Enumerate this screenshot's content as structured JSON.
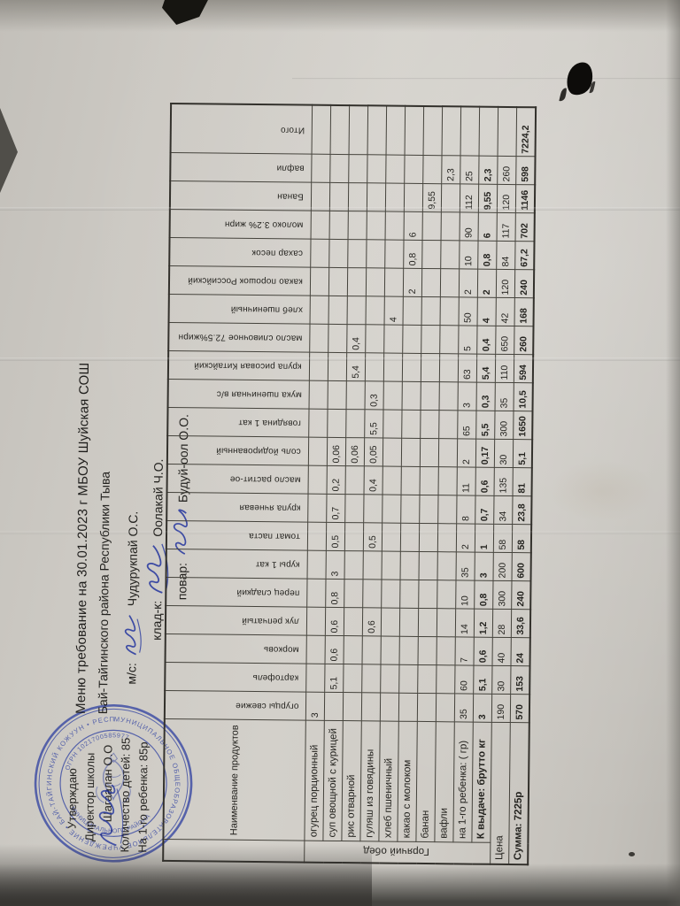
{
  "page": {
    "title_line1": "Меню требование на 30.01.2023 г МБОУ Шуйская СОШ",
    "title_line2": "Бай-Тайгинского района Республики Тыва",
    "staff": [
      {
        "role": "м/с:",
        "name": "Чудурукпай О.С."
      },
      {
        "role": "клад-к:",
        "name": "Оолакай Ч.О."
      },
      {
        "role": "повар:",
        "name": "Будуй-оол О.О."
      }
    ],
    "approval": [
      "Утверждаю",
      "Директор школы",
      "Шагаалан О.О",
      "Количество детей: 85",
      "На 1-го ребенка: 85р"
    ],
    "stamp": {
      "ring_text": "МУНИЦИПАЛЬНОЕ ОБЩЕОБРАЗОВАТЕЛЬНОЕ УЧРЕЖДЕНИЕ • БАЙ-ТАЙГИНСКИЙ КОЖУУН • РЕСПУБЛИКИ ТЫВА •",
      "inner_top": "ОГРН 1021700585977",
      "inner_bottom": "МУНИЦИПАЛЬНОГО РАЙОНА",
      "color": "#3a4aa3"
    }
  },
  "table": {
    "section_label": "Горячий обед",
    "section_span_rows": 10,
    "name_header": "Наименвание продуктов",
    "columns": [
      "огурцы свежие",
      "картофель",
      "морковь",
      "лук репчатый",
      "перец сладкий",
      "куры 1 кат",
      "томат паста",
      "крупа ячневая",
      "масло растит-ое",
      "соль йодированный",
      "говядина 1 кат",
      "мука пшеничная в/с",
      "крупа рисовая Китайский",
      "масло сливочное 72.5%жирн",
      "хлеб пшеничный",
      "какао порошок Российский",
      "сахар песок",
      "молоко 3.2% жирн",
      "Банан",
      "вафли",
      "Итого"
    ],
    "rows": [
      {
        "label": "огурец порционный",
        "bold": false,
        "values": [
          "3",
          "",
          "",
          "",
          "",
          "",
          "",
          "",
          "",
          "",
          "",
          "",
          "",
          "",
          "",
          "",
          "",
          "",
          "",
          "",
          ""
        ]
      },
      {
        "label": "суп овощной с курицей",
        "bold": false,
        "values": [
          "",
          "5,1",
          "0,6",
          "0,6",
          "0,8",
          "3",
          "0,5",
          "0,7",
          "0,2",
          "0,06",
          "",
          "",
          "",
          "",
          "",
          "",
          "",
          "",
          "",
          "",
          ""
        ]
      },
      {
        "label": "рис отварной",
        "bold": false,
        "values": [
          "",
          "",
          "",
          "",
          "",
          "",
          "",
          "",
          "",
          "0,06",
          "",
          "",
          "5,4",
          "0,4",
          "",
          "",
          "",
          "",
          "",
          "",
          ""
        ]
      },
      {
        "label": "гуляш из говядины",
        "bold": false,
        "values": [
          "",
          "",
          "",
          "0,6",
          "",
          "",
          "0,5",
          "",
          "0,4",
          "0,05",
          "5,5",
          "0,3",
          "",
          "",
          "",
          "",
          "",
          "",
          "",
          "",
          ""
        ]
      },
      {
        "label": "хлеб пшеничный",
        "bold": false,
        "values": [
          "",
          "",
          "",
          "",
          "",
          "",
          "",
          "",
          "",
          "",
          "",
          "",
          "",
          "",
          "4",
          "",
          "",
          "",
          "",
          "",
          ""
        ]
      },
      {
        "label": "какао с молоком",
        "bold": false,
        "values": [
          "",
          "",
          "",
          "",
          "",
          "",
          "",
          "",
          "",
          "",
          "",
          "",
          "",
          "",
          "",
          "2",
          "0,8",
          "6",
          "",
          "",
          ""
        ]
      },
      {
        "label": "банан",
        "bold": false,
        "values": [
          "",
          "",
          "",
          "",
          "",
          "",
          "",
          "",
          "",
          "",
          "",
          "",
          "",
          "",
          "",
          "",
          "",
          "",
          "9,55",
          "",
          ""
        ]
      },
      {
        "label": "вафли",
        "bold": false,
        "values": [
          "",
          "",
          "",
          "",
          "",
          "",
          "",
          "",
          "",
          "",
          "",
          "",
          "",
          "",
          "",
          "",
          "",
          "",
          "",
          "2,3",
          ""
        ]
      },
      {
        "label": "на 1-го ребенка: ( гр)",
        "bold": false,
        "values": [
          "35",
          "60",
          "7",
          "14",
          "10",
          "35",
          "2",
          "8",
          "11",
          "2",
          "65",
          "3",
          "63",
          "5",
          "50",
          "2",
          "10",
          "90",
          "112",
          "25",
          ""
        ]
      },
      {
        "label": "К выдаче: брутто кг",
        "bold": true,
        "values": [
          "3",
          "5,1",
          "0,6",
          "1,2",
          "0,8",
          "3",
          "1",
          "0,7",
          "0,6",
          "0,17",
          "5,5",
          "0,3",
          "5,4",
          "0,4",
          "4",
          "2",
          "0,8",
          "6",
          "9,55",
          "2,3",
          ""
        ]
      },
      {
        "label": "Цена",
        "bold": false,
        "values": [
          "190",
          "30",
          "40",
          "28",
          "300",
          "200",
          "58",
          "34",
          "135",
          "30",
          "300",
          "35",
          "110",
          "650",
          "42",
          "120",
          "84",
          "117",
          "120",
          "260",
          ""
        ]
      },
      {
        "label": "Сумма: 7225р",
        "bold": true,
        "values": [
          "570",
          "153",
          "24",
          "33,6",
          "240",
          "600",
          "58",
          "23,8",
          "81",
          "5,1",
          "1650",
          "10,5",
          "594",
          "260",
          "168",
          "240",
          "67,2",
          "702",
          "1146",
          "598",
          "7224,2"
        ]
      }
    ]
  }
}
